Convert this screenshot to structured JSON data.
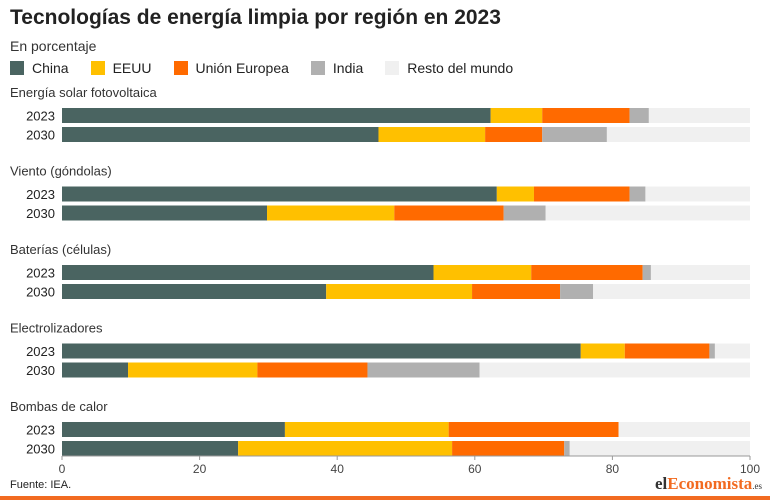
{
  "title": "Tecnologías de energía limpia por región en 2023",
  "subtitle": "En porcentaje",
  "legend": [
    {
      "label": "China",
      "color": "#4a6461"
    },
    {
      "label": "EEUU",
      "color": "#ffc000"
    },
    {
      "label": "Unión Europea",
      "color": "#ff6a00"
    },
    {
      "label": "India",
      "color": "#b0b0b0"
    },
    {
      "label": "Resto del mundo",
      "color": "#f0f0f0"
    }
  ],
  "source": "Fuente: IEA.",
  "brand": {
    "prefix": "el",
    "accent": "Economista",
    "suffix": ".es"
  },
  "chart_data": {
    "type": "bar",
    "orientation": "horizontal",
    "stacked": true,
    "xlim": [
      0,
      100
    ],
    "xticks": [
      "0",
      "20",
      "40",
      "60",
      "80",
      "100"
    ],
    "series": [
      "China",
      "EEUU",
      "Unión Europea",
      "India",
      "Resto del mundo"
    ],
    "groups": [
      {
        "name": "Energía solar fotovoltaica",
        "rows": [
          {
            "label": "2023",
            "values": [
              62.3,
              7.5,
              12.7,
              2.8,
              14.7
            ]
          },
          {
            "label": "2030",
            "values": [
              46.0,
              15.5,
              8.3,
              9.4,
              20.8
            ]
          }
        ]
      },
      {
        "name": "Viento (góndolas)",
        "rows": [
          {
            "label": "2023",
            "values": [
              63.2,
              5.4,
              13.9,
              2.3,
              15.2
            ]
          },
          {
            "label": "2030",
            "values": [
              29.8,
              18.5,
              15.9,
              6.1,
              29.7
            ]
          }
        ]
      },
      {
        "name": "Baterías (células)",
        "rows": [
          {
            "label": "2023",
            "values": [
              54.0,
              14.2,
              16.2,
              1.2,
              14.4
            ]
          },
          {
            "label": "2030",
            "values": [
              38.4,
              21.2,
              12.8,
              4.8,
              22.8
            ]
          }
        ]
      },
      {
        "name": "Electrolizadores",
        "rows": [
          {
            "label": "2023",
            "values": [
              75.4,
              6.4,
              12.3,
              0.8,
              5.1
            ]
          },
          {
            "label": "2030",
            "values": [
              9.6,
              18.8,
              16.0,
              16.3,
              39.3
            ]
          }
        ]
      },
      {
        "name": "Bombas de calor",
        "rows": [
          {
            "label": "2023",
            "values": [
              32.4,
              23.8,
              24.7,
              0.0,
              19.1
            ]
          },
          {
            "label": "2030",
            "values": [
              25.6,
              31.1,
              16.3,
              0.8,
              26.2
            ]
          }
        ]
      }
    ]
  }
}
